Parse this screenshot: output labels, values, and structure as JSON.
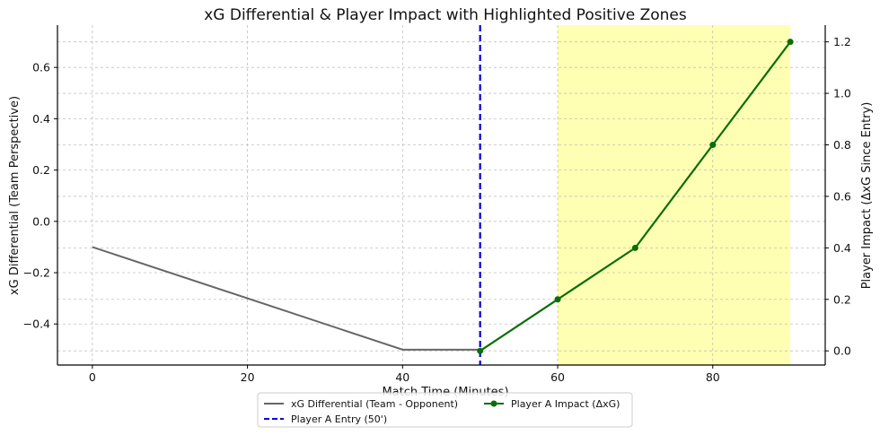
{
  "chart_data": {
    "type": "line",
    "title": "xG Differential & Player Impact with Highlighted Positive Zones",
    "xlabel": "Match Time (Minutes)",
    "ylabel_left": "xG Differential (Team Perspective)",
    "ylabel_right": "Player Impact (ΔxG Since Entry)",
    "xlim": [
      -4.5,
      94.5
    ],
    "ylim_left": [
      -0.56,
      0.765
    ],
    "ylim_right": [
      -0.055,
      1.265
    ],
    "x_ticks": [
      0,
      20,
      40,
      60,
      80
    ],
    "y_ticks_left": [
      -0.4,
      -0.2,
      0.0,
      0.2,
      0.4,
      0.6
    ],
    "y_ticks_left_labels": [
      "−0.4",
      "−0.2",
      "0.0",
      "0.2",
      "0.4",
      "0.6"
    ],
    "y_ticks_right": [
      0.0,
      0.2,
      0.4,
      0.6,
      0.8,
      1.0,
      1.2
    ],
    "y_ticks_right_labels": [
      "0.0",
      "0.2",
      "0.4",
      "0.6",
      "0.8",
      "1.0",
      "1.2"
    ],
    "grid": true,
    "legend_position": "bottom-center",
    "series": [
      {
        "name": "xG Differential (Team - Opponent)",
        "axis": "left",
        "color": "#666666",
        "x": [
          0,
          40,
          50
        ],
        "y": [
          -0.1,
          -0.5,
          -0.5
        ]
      },
      {
        "name": "Player A Impact (ΔxG)",
        "axis": "right",
        "color": "#0a6e0a",
        "marker": "circle",
        "x": [
          50,
          60,
          70,
          80,
          90
        ],
        "y": [
          0.0,
          0.2,
          0.4,
          0.8,
          1.2
        ]
      }
    ],
    "vline": {
      "name": "Player A Entry (50')",
      "x": 50,
      "color": "#0000dd",
      "style": "dashed"
    },
    "highlight": {
      "x_start": 60,
      "x_end": 90,
      "color": "#ffff99"
    }
  }
}
